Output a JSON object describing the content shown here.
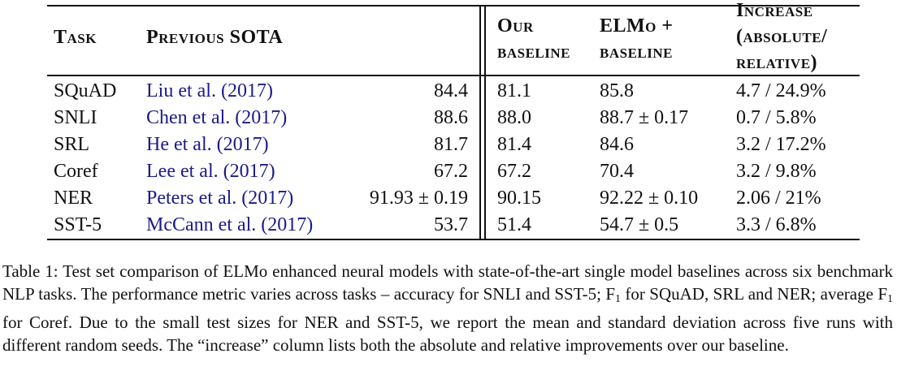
{
  "table": {
    "headers": {
      "task": "Task",
      "previous_sota": "Previous SOTA",
      "our_baseline_1": "Our",
      "our_baseline_2": "baseline",
      "elmo_baseline_1": "ELMo +",
      "elmo_baseline_2": "baseline",
      "increase_1": "Increase",
      "increase_2": "(absolute/",
      "increase_3": "relative)"
    },
    "rows": [
      {
        "task": "SQuAD",
        "citation": "Liu et al. (2017)",
        "sota": "84.4",
        "baseline": "81.1",
        "elmo": "85.8",
        "increase": "4.7 / 24.9%"
      },
      {
        "task": "SNLI",
        "citation": "Chen et al. (2017)",
        "sota": "88.6",
        "baseline": "88.0",
        "elmo": "88.7 ± 0.17",
        "increase": "0.7 / 5.8%"
      },
      {
        "task": "SRL",
        "citation": "He et al. (2017)",
        "sota": "81.7",
        "baseline": "81.4",
        "elmo": "84.6",
        "increase": "3.2 / 17.2%"
      },
      {
        "task": "Coref",
        "citation": "Lee et al. (2017)",
        "sota": "67.2",
        "baseline": "67.2",
        "elmo": "70.4",
        "increase": "3.2 / 9.8%"
      },
      {
        "task": "NER",
        "citation": "Peters et al. (2017)",
        "sota": "91.93 ± 0.19",
        "baseline": "90.15",
        "elmo": "92.22 ± 0.10",
        "increase": "2.06 / 21%"
      },
      {
        "task": "SST-5",
        "citation": "McCann et al. (2017)",
        "sota": "53.7",
        "baseline": "51.4",
        "elmo": "54.7 ± 0.5",
        "increase": "3.3 / 6.8%"
      }
    ]
  },
  "caption": {
    "part1": "Table 1: Test set comparison of ELMo enhanced neural models with state-of-the-art single model baselines across six benchmark NLP tasks. The performance metric varies across tasks – accuracy for SNLI and SST-5; F",
    "sub1": "1",
    "part2": " for SQuAD, SRL and NER; average F",
    "sub2": "1",
    "part3": " for Coref. Due to the small test sizes for NER and SST-5, we report the mean and standard deviation across five runs with different random seeds. The “increase” column lists both the absolute and relative improvements over our baseline."
  }
}
